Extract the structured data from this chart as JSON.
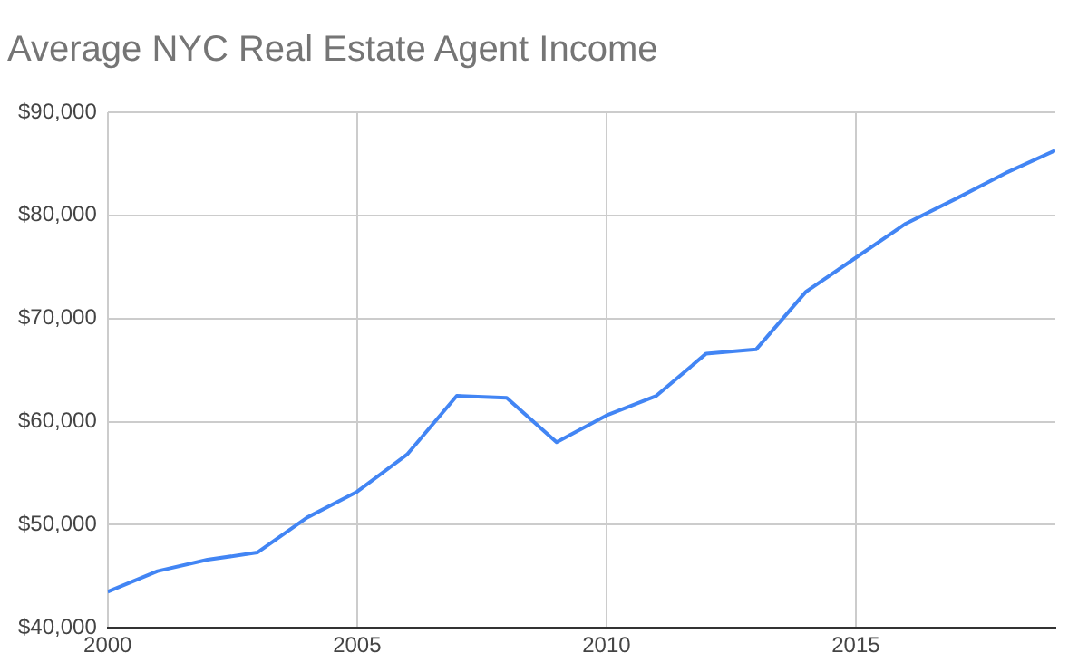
{
  "chart_data": {
    "type": "line",
    "title": "Average NYC Real Estate Agent Income",
    "x": [
      2000,
      2001,
      2002,
      2003,
      2004,
      2005,
      2006,
      2007,
      2008,
      2009,
      2010,
      2011,
      2012,
      2013,
      2014,
      2015,
      2016,
      2017,
      2018,
      2019
    ],
    "series": [
      {
        "color": "#4285f4",
        "values": [
          43500,
          45500,
          46600,
          47300,
          50700,
          53200,
          56800,
          62500,
          62300,
          58000,
          60600,
          62500,
          66600,
          67000,
          72600,
          75900,
          79200,
          81600,
          84100,
          86300
        ]
      }
    ],
    "xlim": [
      2000,
      2019
    ],
    "xticks": [
      2000,
      2005,
      2010,
      2015
    ],
    "ylim": [
      40000,
      90000
    ],
    "yticks": [
      {
        "value": 40000,
        "label": "$40,000"
      },
      {
        "value": 50000,
        "label": "$50,000"
      },
      {
        "value": 60000,
        "label": "$60,000"
      },
      {
        "value": 70000,
        "label": "$70,000"
      },
      {
        "value": 80000,
        "label": "$80,000"
      },
      {
        "value": 90000,
        "label": "$90,000"
      }
    ],
    "grid": true,
    "legend": false,
    "marker": "none",
    "line_style": "solid"
  }
}
